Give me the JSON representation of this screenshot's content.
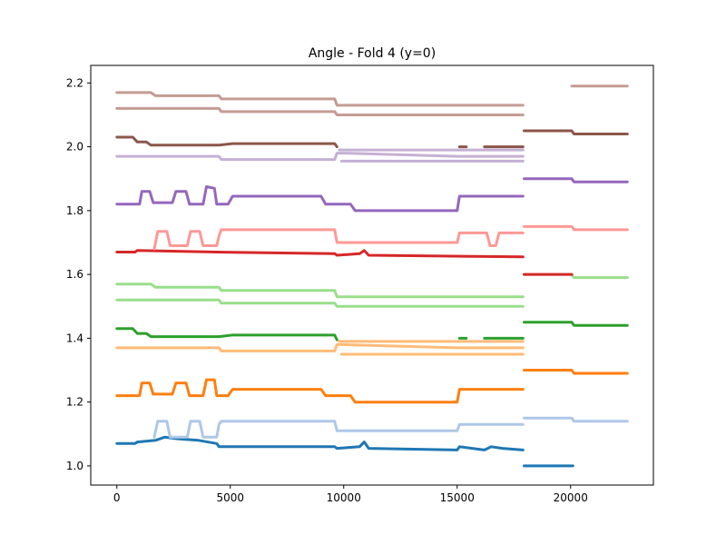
{
  "chart_data": {
    "type": "line",
    "title": "Angle - Fold 4 (y=0)",
    "xlabel": "",
    "ylabel": "",
    "xlim": [
      -1150,
      23650
    ],
    "ylim": [
      0.94,
      2.255
    ],
    "x_ticks": [
      0,
      5000,
      10000,
      15000,
      20000
    ],
    "x_tick_labels": [
      "0",
      "5000",
      "10000",
      "15000",
      "20000"
    ],
    "y_ticks": [
      1.0,
      1.2,
      1.4,
      1.6,
      1.8,
      2.0,
      2.2
    ],
    "y_tick_labels": [
      "1.0",
      "1.2",
      "1.4",
      "1.6",
      "1.8",
      "2.0",
      "2.2"
    ],
    "grid": false,
    "legend": "none",
    "colors": {
      "blue": "#1f77b4",
      "light_blue": "#aec7e8",
      "orange": "#ff7f0e",
      "light_orange": "#ffbb78",
      "green": "#2ca02c",
      "light_green": "#98df8a",
      "red": "#d62728",
      "light_red": "#ff9896",
      "purple": "#9467bd",
      "light_purple": "#c5b0d5",
      "brown": "#8c564b",
      "light_brown": "#c49c94"
    },
    "series": [
      {
        "color": "#1f77b4",
        "points": [
          [
            0,
            1.07
          ],
          [
            800,
            1.07
          ],
          [
            900,
            1.075
          ],
          [
            1700,
            1.08
          ],
          [
            2100,
            1.09
          ],
          [
            2700,
            1.085
          ],
          [
            3600,
            1.08
          ],
          [
            4400,
            1.07
          ],
          [
            4500,
            1.06
          ],
          [
            9600,
            1.06
          ],
          [
            9700,
            1.055
          ],
          [
            10700,
            1.06
          ],
          [
            10900,
            1.075
          ],
          [
            11100,
            1.055
          ],
          [
            15000,
            1.05
          ],
          [
            15100,
            1.06
          ],
          [
            16200,
            1.05
          ],
          [
            16500,
            1.06
          ],
          [
            17000,
            1.055
          ],
          [
            17900,
            1.05
          ]
        ],
        "extra_segments": [
          [
            [
              17950,
              1.0
            ],
            [
              20100,
              1.0
            ]
          ]
        ]
      },
      {
        "color": "#aec7e8",
        "points": [
          [
            1650,
            1.09
          ],
          [
            1800,
            1.14
          ],
          [
            2200,
            1.14
          ],
          [
            2350,
            1.09
          ],
          [
            3100,
            1.09
          ],
          [
            3250,
            1.14
          ],
          [
            3650,
            1.14
          ],
          [
            3800,
            1.09
          ],
          [
            4400,
            1.09
          ],
          [
            4500,
            1.13
          ],
          [
            4600,
            1.14
          ],
          [
            9600,
            1.14
          ],
          [
            9700,
            1.11
          ],
          [
            10000,
            1.11
          ],
          [
            15000,
            1.11
          ],
          [
            15100,
            1.13
          ],
          [
            17900,
            1.13
          ]
        ],
        "extra_segments": [
          [
            [
              17950,
              1.15
            ],
            [
              20050,
              1.15
            ],
            [
              20150,
              1.14
            ],
            [
              22500,
              1.14
            ]
          ]
        ]
      },
      {
        "color": "#ff7f0e",
        "points": [
          [
            0,
            1.22
          ],
          [
            1000,
            1.22
          ],
          [
            1100,
            1.26
          ],
          [
            1450,
            1.26
          ],
          [
            1600,
            1.225
          ],
          [
            2450,
            1.225
          ],
          [
            2600,
            1.26
          ],
          [
            3050,
            1.26
          ],
          [
            3200,
            1.22
          ],
          [
            3800,
            1.22
          ],
          [
            3950,
            1.27
          ],
          [
            4300,
            1.27
          ],
          [
            4400,
            1.22
          ],
          [
            4900,
            1.22
          ],
          [
            5100,
            1.24
          ],
          [
            9000,
            1.24
          ],
          [
            9200,
            1.22
          ],
          [
            10300,
            1.22
          ],
          [
            10500,
            1.2
          ],
          [
            15000,
            1.2
          ],
          [
            15100,
            1.24
          ],
          [
            17900,
            1.24
          ]
        ],
        "extra_segments": [
          [
            [
              17950,
              1.3
            ],
            [
              20050,
              1.3
            ],
            [
              20150,
              1.29
            ],
            [
              22500,
              1.29
            ]
          ]
        ]
      },
      {
        "color": "#ffbb78",
        "points": [
          [
            0,
            1.37
          ],
          [
            4500,
            1.37
          ],
          [
            4600,
            1.36
          ],
          [
            9600,
            1.36
          ],
          [
            9700,
            1.38
          ],
          [
            10000,
            1.38
          ],
          [
            15000,
            1.37
          ],
          [
            17900,
            1.37
          ]
        ],
        "extra_segments": [
          [
            [
              9800,
              1.39
            ],
            [
              17900,
              1.39
            ]
          ],
          [
            [
              9900,
              1.35
            ],
            [
              17900,
              1.35
            ]
          ]
        ]
      },
      {
        "color": "#2ca02c",
        "points": [
          [
            0,
            1.43
          ],
          [
            700,
            1.43
          ],
          [
            900,
            1.415
          ],
          [
            1300,
            1.415
          ],
          [
            1500,
            1.405
          ],
          [
            4500,
            1.405
          ],
          [
            5100,
            1.41
          ],
          [
            9600,
            1.41
          ],
          [
            9700,
            1.395
          ]
        ],
        "extra_segments": [
          [
            [
              15100,
              1.4
            ],
            [
              15400,
              1.4
            ]
          ],
          [
            [
              16200,
              1.4
            ],
            [
              17900,
              1.4
            ]
          ],
          [
            [
              17950,
              1.45
            ],
            [
              20050,
              1.45
            ],
            [
              20150,
              1.44
            ],
            [
              22500,
              1.44
            ]
          ]
        ]
      },
      {
        "color": "#98df8a",
        "points": [
          [
            0,
            1.57
          ],
          [
            1500,
            1.57
          ],
          [
            1700,
            1.56
          ],
          [
            4500,
            1.56
          ],
          [
            4600,
            1.55
          ],
          [
            9600,
            1.55
          ],
          [
            9700,
            1.53
          ],
          [
            17900,
            1.53
          ]
        ],
        "extra_segments": [
          [
            [
              0,
              1.52
            ],
            [
              4500,
              1.52
            ],
            [
              4600,
              1.51
            ],
            [
              9600,
              1.51
            ],
            [
              9700,
              1.5
            ],
            [
              17900,
              1.5
            ]
          ],
          [
            [
              17950,
              1.6
            ],
            [
              20050,
              1.6
            ],
            [
              20150,
              1.59
            ],
            [
              22500,
              1.59
            ]
          ]
        ]
      },
      {
        "color": "#d62728",
        "points": [
          [
            0,
            1.67
          ],
          [
            800,
            1.67
          ],
          [
            900,
            1.675
          ],
          [
            4400,
            1.67
          ],
          [
            9600,
            1.665
          ],
          [
            9700,
            1.66
          ],
          [
            10700,
            1.665
          ],
          [
            10900,
            1.675
          ],
          [
            11100,
            1.66
          ],
          [
            17900,
            1.655
          ]
        ],
        "extra_segments": [
          [
            [
              17950,
              1.6
            ],
            [
              20050,
              1.6
            ]
          ]
        ]
      },
      {
        "color": "#ff9896",
        "points": [
          [
            1650,
            1.68
          ],
          [
            1800,
            1.735
          ],
          [
            2200,
            1.735
          ],
          [
            2350,
            1.69
          ],
          [
            3100,
            1.69
          ],
          [
            3250,
            1.735
          ],
          [
            3650,
            1.735
          ],
          [
            3800,
            1.69
          ],
          [
            4400,
            1.69
          ],
          [
            4500,
            1.72
          ],
          [
            4600,
            1.74
          ],
          [
            9600,
            1.74
          ],
          [
            9700,
            1.7
          ],
          [
            15000,
            1.7
          ],
          [
            15100,
            1.73
          ],
          [
            16300,
            1.73
          ],
          [
            16450,
            1.69
          ],
          [
            16700,
            1.69
          ],
          [
            16850,
            1.73
          ],
          [
            17900,
            1.73
          ]
        ],
        "extra_segments": [
          [
            [
              17950,
              1.75
            ],
            [
              20050,
              1.75
            ],
            [
              20150,
              1.74
            ],
            [
              22500,
              1.74
            ]
          ]
        ]
      },
      {
        "color": "#9467bd",
        "points": [
          [
            0,
            1.82
          ],
          [
            1000,
            1.82
          ],
          [
            1100,
            1.86
          ],
          [
            1450,
            1.86
          ],
          [
            1600,
            1.825
          ],
          [
            2450,
            1.825
          ],
          [
            2600,
            1.86
          ],
          [
            3050,
            1.86
          ],
          [
            3200,
            1.82
          ],
          [
            3800,
            1.82
          ],
          [
            3950,
            1.875
          ],
          [
            4300,
            1.87
          ],
          [
            4400,
            1.82
          ],
          [
            4900,
            1.82
          ],
          [
            5100,
            1.845
          ],
          [
            9000,
            1.845
          ],
          [
            9200,
            1.82
          ],
          [
            10300,
            1.82
          ],
          [
            10500,
            1.8
          ],
          [
            15000,
            1.8
          ],
          [
            15100,
            1.845
          ],
          [
            17900,
            1.845
          ]
        ],
        "extra_segments": [
          [
            [
              17950,
              1.9
            ],
            [
              20050,
              1.9
            ],
            [
              20150,
              1.89
            ],
            [
              22500,
              1.89
            ]
          ]
        ]
      },
      {
        "color": "#c5b0d5",
        "points": [
          [
            0,
            1.97
          ],
          [
            4500,
            1.97
          ],
          [
            4600,
            1.96
          ],
          [
            9600,
            1.96
          ],
          [
            9700,
            1.98
          ],
          [
            10000,
            1.98
          ],
          [
            15000,
            1.97
          ],
          [
            17900,
            1.97
          ]
        ],
        "extra_segments": [
          [
            [
              9800,
              1.99
            ],
            [
              17900,
              1.99
            ]
          ],
          [
            [
              9900,
              1.955
            ],
            [
              17900,
              1.955
            ]
          ]
        ]
      },
      {
        "color": "#8c564b",
        "points": [
          [
            0,
            2.03
          ],
          [
            700,
            2.03
          ],
          [
            900,
            2.015
          ],
          [
            1300,
            2.015
          ],
          [
            1500,
            2.005
          ],
          [
            4500,
            2.005
          ],
          [
            5100,
            2.01
          ],
          [
            9600,
            2.01
          ],
          [
            9700,
            2.0
          ]
        ],
        "extra_segments": [
          [
            [
              15100,
              2.0
            ],
            [
              15400,
              2.0
            ]
          ],
          [
            [
              16200,
              2.0
            ],
            [
              17900,
              2.0
            ]
          ],
          [
            [
              17950,
              2.05
            ],
            [
              20050,
              2.05
            ],
            [
              20150,
              2.04
            ],
            [
              22500,
              2.04
            ]
          ]
        ]
      },
      {
        "color": "#c49c94",
        "points": [
          [
            0,
            2.17
          ],
          [
            1500,
            2.17
          ],
          [
            1700,
            2.16
          ],
          [
            4500,
            2.16
          ],
          [
            4600,
            2.15
          ],
          [
            9600,
            2.15
          ],
          [
            9700,
            2.13
          ],
          [
            17900,
            2.13
          ]
        ],
        "extra_segments": [
          [
            [
              0,
              2.12
            ],
            [
              4500,
              2.12
            ],
            [
              4600,
              2.11
            ],
            [
              9600,
              2.11
            ],
            [
              9700,
              2.1
            ],
            [
              17900,
              2.1
            ]
          ],
          [
            [
              20050,
              2.19
            ],
            [
              22500,
              2.19
            ]
          ]
        ]
      }
    ]
  }
}
